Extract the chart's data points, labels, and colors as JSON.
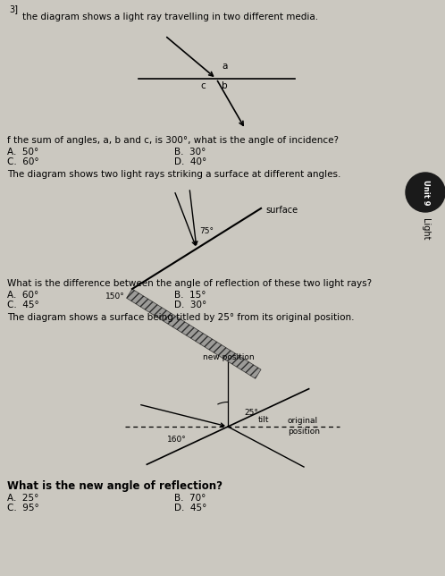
{
  "bg_color": "#cbc8c0",
  "text_color": "#000000",
  "title1": "the diagram shows a light ray travelling in two different media.",
  "q1_text": "f the sum of angles, a, b and c, is 300°, what is the angle of incidence?",
  "q1_A": "A.  50°",
  "q1_B": "B.  30°",
  "q1_C": "C.  60°",
  "q1_D": "D.  40°",
  "title2": "The diagram shows two light rays striking a surface at different angles.",
  "q2_text": "What is the difference between the angle of reflection of these two light rays?",
  "q2_A": "A.  60°",
  "q2_B": "B.  15°",
  "q2_C": "C.  45°",
  "q2_D": "D.  30°",
  "title3": "The diagram shows a surface being titled by 25° from its original position.",
  "q3_text": "What is the new angle of reflection?",
  "q3_A": "A.  25°",
  "q3_B": "B.  70°",
  "q3_C": "C.  95°",
  "q3_D": "D.  45°",
  "unit_text": "Unit 9",
  "light_text": "Light"
}
